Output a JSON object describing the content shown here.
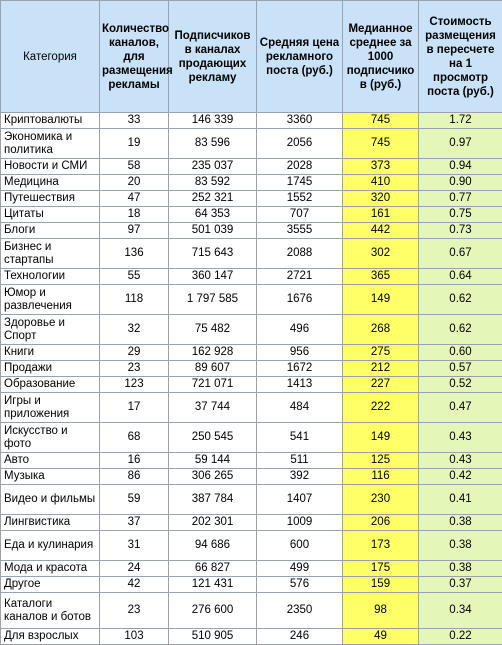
{
  "headers": [
    "Категория",
    "Количество каналов, для размещения рекламы",
    "Подписчиков в каналах продающих рекламу",
    "Средняя цена рекламного поста  (руб.)",
    "Медианное среднее за 1000 подписчико в (руб.)",
    "Стоимость размещения в пересчете на 1 просмотр поста (руб.)"
  ],
  "rows": [
    {
      "category": "Криптовалюты",
      "channels": "33",
      "subscribers": "146 339",
      "avg_price": "3360",
      "median_1000": "745",
      "cost_per_view": "1.72"
    },
    {
      "category": "Экономика и политика",
      "channels": "19",
      "subscribers": "83 596",
      "avg_price": "2056",
      "median_1000": "745",
      "cost_per_view": "0.97"
    },
    {
      "category": "Новости и СМИ",
      "channels": "58",
      "subscribers": "235 037",
      "avg_price": "2028",
      "median_1000": "373",
      "cost_per_view": "0.94"
    },
    {
      "category": "Медицина",
      "channels": "20",
      "subscribers": "83 592",
      "avg_price": "1745",
      "median_1000": "410",
      "cost_per_view": "0.90"
    },
    {
      "category": "Путешествия",
      "channels": "47",
      "subscribers": "252 321",
      "avg_price": "1552",
      "median_1000": "320",
      "cost_per_view": "0.77"
    },
    {
      "category": "Цитаты",
      "channels": "18",
      "subscribers": "64 353",
      "avg_price": "707",
      "median_1000": "161",
      "cost_per_view": "0.75"
    },
    {
      "category": "Блоги",
      "channels": "97",
      "subscribers": "501 039",
      "avg_price": "3555",
      "median_1000": "442",
      "cost_per_view": "0.73"
    },
    {
      "category": "Бизнес и стартапы",
      "channels": "136",
      "subscribers": "715 643",
      "avg_price": "2088",
      "median_1000": "302",
      "cost_per_view": "0.67"
    },
    {
      "category": "Технологии",
      "channels": "55",
      "subscribers": "360 147",
      "avg_price": "2721",
      "median_1000": "365",
      "cost_per_view": "0.64"
    },
    {
      "category": "Юмор и развлечения",
      "channels": "118",
      "subscribers": "1 797 585",
      "avg_price": "1676",
      "median_1000": "149",
      "cost_per_view": "0.62"
    },
    {
      "category": "Здоровье и Спорт",
      "channels": "32",
      "subscribers": "75 482",
      "avg_price": "496",
      "median_1000": "268",
      "cost_per_view": "0.62"
    },
    {
      "category": "Книги",
      "channels": "29",
      "subscribers": "162 928",
      "avg_price": "956",
      "median_1000": "275",
      "cost_per_view": "0.60"
    },
    {
      "category": "Продажи",
      "channels": "23",
      "subscribers": "89 607",
      "avg_price": "1672",
      "median_1000": "212",
      "cost_per_view": "0.57"
    },
    {
      "category": "Образование",
      "channels": "123",
      "subscribers": "721 071",
      "avg_price": "1413",
      "median_1000": "227",
      "cost_per_view": "0.52"
    },
    {
      "category": "Игры и приложения",
      "channels": "17",
      "subscribers": "37 744",
      "avg_price": "484",
      "median_1000": "222",
      "cost_per_view": "0.47"
    },
    {
      "category": "Искусство и фото",
      "channels": "68",
      "subscribers": "250 545",
      "avg_price": "541",
      "median_1000": "149",
      "cost_per_view": "0.43"
    },
    {
      "category": "Авто",
      "channels": "16",
      "subscribers": "59 144",
      "avg_price": "511",
      "median_1000": "125",
      "cost_per_view": "0.43"
    },
    {
      "category": "Музыка",
      "channels": "86",
      "subscribers": "306 265",
      "avg_price": "392",
      "median_1000": "116",
      "cost_per_view": "0.42"
    },
    {
      "category": "Видео и фильмы",
      "channels": "59",
      "subscribers": "387 784",
      "avg_price": "1407",
      "median_1000": "230",
      "cost_per_view": "0.41"
    },
    {
      "category": "Лингвистика",
      "channels": "37",
      "subscribers": "202 301",
      "avg_price": "1009",
      "median_1000": "206",
      "cost_per_view": "0.38"
    },
    {
      "category": "Еда и кулинария",
      "channels": "31",
      "subscribers": "94 686",
      "avg_price": "600",
      "median_1000": "173",
      "cost_per_view": "0.38"
    },
    {
      "category": "Мода и красота",
      "channels": "24",
      "subscribers": "66 827",
      "avg_price": "499",
      "median_1000": "175",
      "cost_per_view": "0.38"
    },
    {
      "category": "Другое",
      "channels": "42",
      "subscribers": "121 431",
      "avg_price": "576",
      "median_1000": "159",
      "cost_per_view": "0.37"
    },
    {
      "category": "Каталоги каналов и ботов",
      "channels": "23",
      "subscribers": "276 600",
      "avg_price": "2350",
      "median_1000": "98",
      "cost_per_view": "0.34"
    },
    {
      "category": "Для взрослых",
      "channels": "103",
      "subscribers": "510 905",
      "avg_price": "246",
      "median_1000": "49",
      "cost_per_view": "0.22"
    }
  ]
}
